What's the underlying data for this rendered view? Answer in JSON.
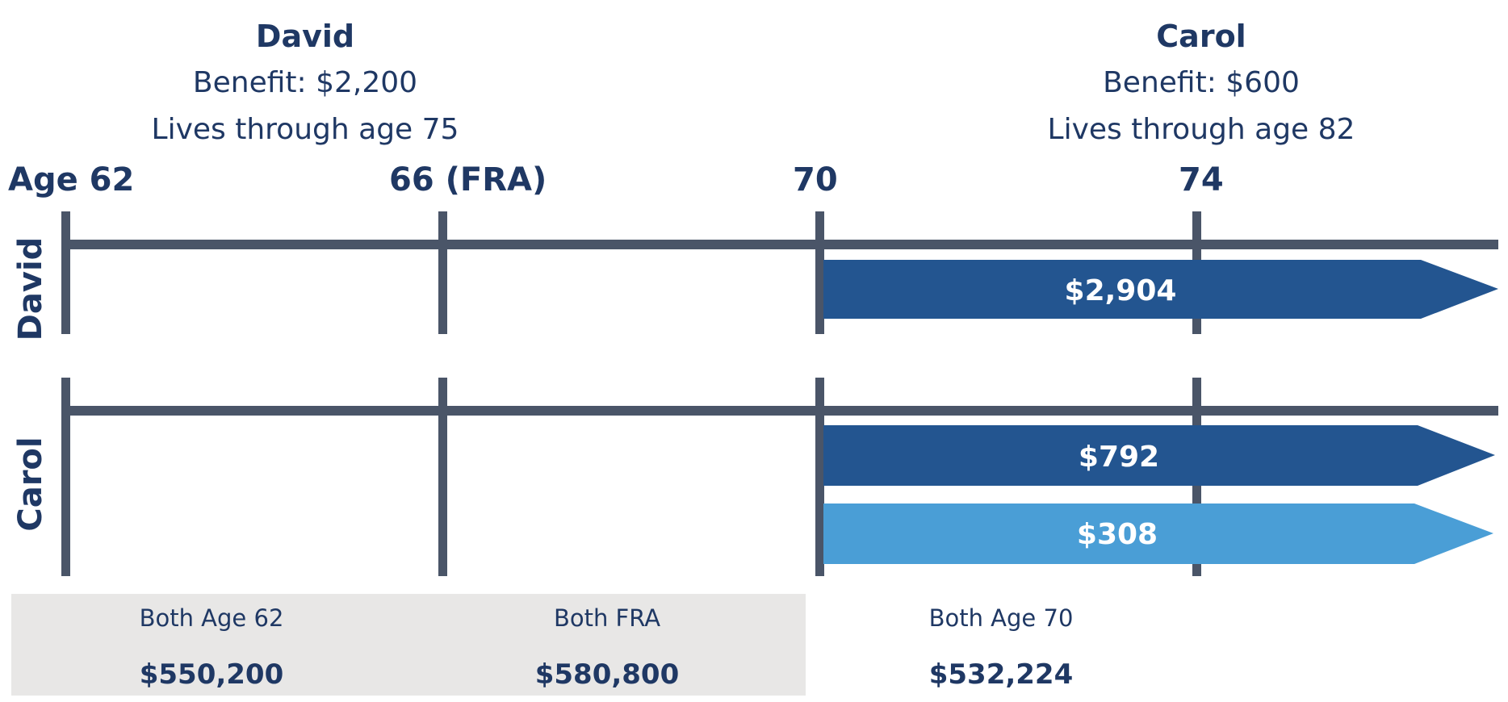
{
  "people": {
    "david": {
      "name": "David",
      "benefit": "Benefit: $2,200",
      "lives": "Lives through age 75",
      "row_label": "David"
    },
    "carol": {
      "name": "Carol",
      "benefit": "Benefit: $600",
      "lives": "Lives through age 82",
      "row_label": "Carol"
    }
  },
  "ticks": [
    "Age 62",
    "66 (FRA)",
    "70",
    "74"
  ],
  "bars": {
    "david_main": "$2,904",
    "carol_main": "$792",
    "carol_secondary": "$308"
  },
  "colors": {
    "line": "#4a5568",
    "bar_dark": "#235590",
    "bar_light": "#4a9ed6",
    "text": "#1f3864",
    "summary_bg": "#e8e7e6"
  },
  "summary": [
    {
      "label": "Both Age 62",
      "value": "$550,200"
    },
    {
      "label": "Both FRA",
      "value": "$580,800"
    },
    {
      "label": "Both Age 70",
      "value": "$532,224"
    }
  ]
}
